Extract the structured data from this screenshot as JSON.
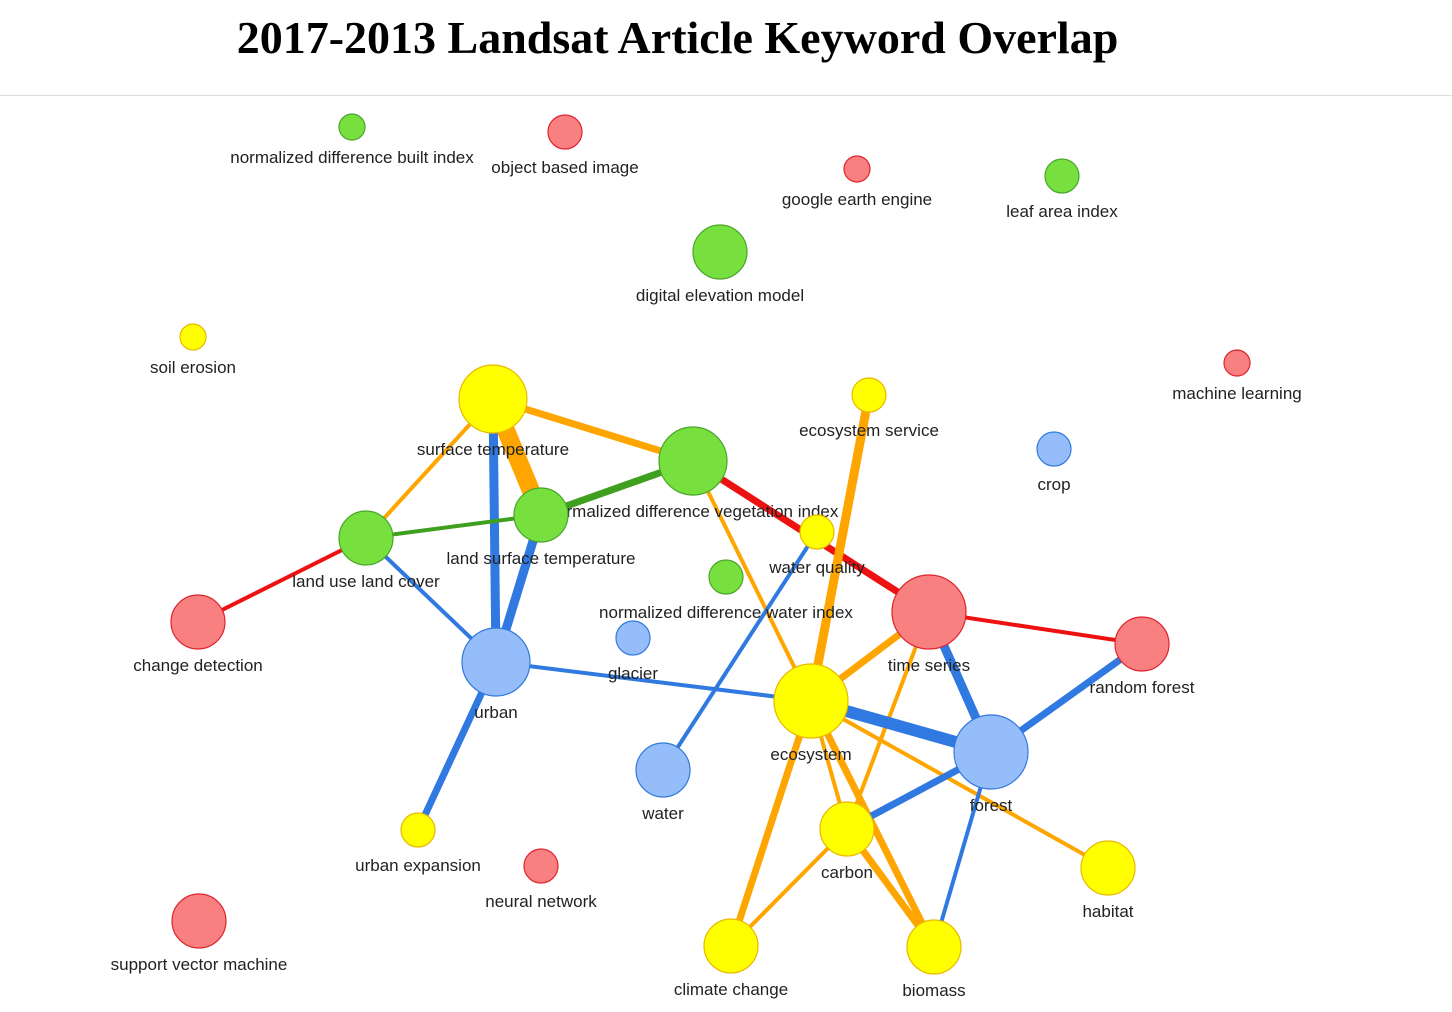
{
  "title": "2017-2013 Landsat Article Keyword Overlap",
  "colors": {
    "red": {
      "fill": "#f88080",
      "stroke": "#e0232d",
      "edge": "#ee1111"
    },
    "green": {
      "fill": "#77e03e",
      "stroke": "#4aa52a",
      "edge": "#3f9f1e"
    },
    "blue": {
      "fill": "#94bdf9",
      "stroke": "#3179dd",
      "edge": "#2f79e0"
    },
    "yellow": {
      "fill": "#ffff00",
      "stroke": "#e8b800",
      "edge": "#ffa500"
    }
  },
  "nodes": [
    {
      "id": "ndbi",
      "label": "normalized difference built index",
      "group": "green",
      "size": "xs"
    },
    {
      "id": "obi",
      "label": "object based image",
      "group": "red",
      "size": "s"
    },
    {
      "id": "gee",
      "label": "google earth engine",
      "group": "red",
      "size": "xs"
    },
    {
      "id": "lai",
      "label": "leaf area index",
      "group": "green",
      "size": "s"
    },
    {
      "id": "dem",
      "label": "digital elevation model",
      "group": "green",
      "size": "m"
    },
    {
      "id": "soil",
      "label": "soil erosion",
      "group": "yellow",
      "size": "xs"
    },
    {
      "id": "ml",
      "label": "machine learning",
      "group": "red",
      "size": "xs"
    },
    {
      "id": "st",
      "label": "surface temperature",
      "group": "yellow",
      "size": "l"
    },
    {
      "id": "es",
      "label": "ecosystem service",
      "group": "yellow",
      "size": "s"
    },
    {
      "id": "crop",
      "label": "crop",
      "group": "blue",
      "size": "s"
    },
    {
      "id": "ndvi",
      "label": "normalized difference vegetation index",
      "group": "green",
      "size": "l"
    },
    {
      "id": "lst",
      "label": "land surface temperature",
      "group": "green",
      "size": "m"
    },
    {
      "id": "lulc",
      "label": "land use land cover",
      "group": "green",
      "size": "m"
    },
    {
      "id": "wq",
      "label": "water quality",
      "group": "yellow",
      "size": "s"
    },
    {
      "id": "ndwi",
      "label": "normalized difference water index",
      "group": "green",
      "size": "s"
    },
    {
      "id": "cd",
      "label": "change detection",
      "group": "red",
      "size": "m"
    },
    {
      "id": "ts",
      "label": "time series",
      "group": "red",
      "size": "xl"
    },
    {
      "id": "rf",
      "label": "random forest",
      "group": "red",
      "size": "m"
    },
    {
      "id": "glacier",
      "label": "glacier",
      "group": "blue",
      "size": "s"
    },
    {
      "id": "urban",
      "label": "urban",
      "group": "blue",
      "size": "l"
    },
    {
      "id": "ecosystem",
      "label": "ecosystem",
      "group": "yellow",
      "size": "xl"
    },
    {
      "id": "forest",
      "label": "forest",
      "group": "blue",
      "size": "xl"
    },
    {
      "id": "water",
      "label": "water",
      "group": "blue",
      "size": "m"
    },
    {
      "id": "ue",
      "label": "urban expansion",
      "group": "yellow",
      "size": "s"
    },
    {
      "id": "carbon",
      "label": "carbon",
      "group": "yellow",
      "size": "m"
    },
    {
      "id": "nn",
      "label": "neural network",
      "group": "red",
      "size": "s"
    },
    {
      "id": "habitat",
      "label": "habitat",
      "group": "yellow",
      "size": "m"
    },
    {
      "id": "svm",
      "label": "support vector machine",
      "group": "red",
      "size": "m"
    },
    {
      "id": "cc",
      "label": "climate change",
      "group": "yellow",
      "size": "m"
    },
    {
      "id": "biomass",
      "label": "biomass",
      "group": "yellow",
      "size": "m"
    }
  ],
  "edges": [
    {
      "source": "st",
      "target": "lst",
      "group": "yellow",
      "weight": 6
    },
    {
      "source": "st",
      "target": "ndvi",
      "group": "yellow",
      "weight": 2
    },
    {
      "source": "st",
      "target": "lulc",
      "group": "yellow",
      "weight": 1
    },
    {
      "source": "st",
      "target": "urban",
      "group": "blue",
      "weight": 3
    },
    {
      "source": "lst",
      "target": "urban",
      "group": "blue",
      "weight": 3
    },
    {
      "source": "lulc",
      "target": "urban",
      "group": "blue",
      "weight": 1
    },
    {
      "source": "lulc",
      "target": "lst",
      "group": "green",
      "weight": 1
    },
    {
      "source": "lst",
      "target": "ndvi",
      "group": "green",
      "weight": 2
    },
    {
      "source": "lulc",
      "target": "cd",
      "group": "red",
      "weight": 1
    },
    {
      "source": "ndvi",
      "target": "ts",
      "group": "red",
      "weight": 2
    },
    {
      "source": "ndvi",
      "target": "ecosystem",
      "group": "yellow",
      "weight": 1
    },
    {
      "source": "ts",
      "target": "rf",
      "group": "red",
      "weight": 1
    },
    {
      "source": "ts",
      "target": "forest",
      "group": "blue",
      "weight": 3
    },
    {
      "source": "ts",
      "target": "ecosystem",
      "group": "yellow",
      "weight": 2
    },
    {
      "source": "ts",
      "target": "carbon",
      "group": "yellow",
      "weight": 1
    },
    {
      "source": "es",
      "target": "ecosystem",
      "group": "yellow",
      "weight": 3
    },
    {
      "source": "wq",
      "target": "water",
      "group": "blue",
      "weight": 1
    },
    {
      "source": "urban",
      "target": "ecosystem",
      "group": "blue",
      "weight": 1
    },
    {
      "source": "urban",
      "target": "ue",
      "group": "blue",
      "weight": 2
    },
    {
      "source": "ecosystem",
      "target": "forest",
      "group": "blue",
      "weight": 4
    },
    {
      "source": "ecosystem",
      "target": "habitat",
      "group": "yellow",
      "weight": 1
    },
    {
      "source": "ecosystem",
      "target": "carbon",
      "group": "yellow",
      "weight": 1
    },
    {
      "source": "ecosystem",
      "target": "biomass",
      "group": "yellow",
      "weight": 2
    },
    {
      "source": "ecosystem",
      "target": "cc",
      "group": "yellow",
      "weight": 2
    },
    {
      "source": "forest",
      "target": "rf",
      "group": "blue",
      "weight": 2
    },
    {
      "source": "forest",
      "target": "carbon",
      "group": "blue",
      "weight": 2
    },
    {
      "source": "forest",
      "target": "biomass",
      "group": "blue",
      "weight": 1
    },
    {
      "source": "carbon",
      "target": "cc",
      "group": "yellow",
      "weight": 1
    },
    {
      "source": "carbon",
      "target": "biomass",
      "group": "yellow",
      "weight": 2
    }
  ]
}
